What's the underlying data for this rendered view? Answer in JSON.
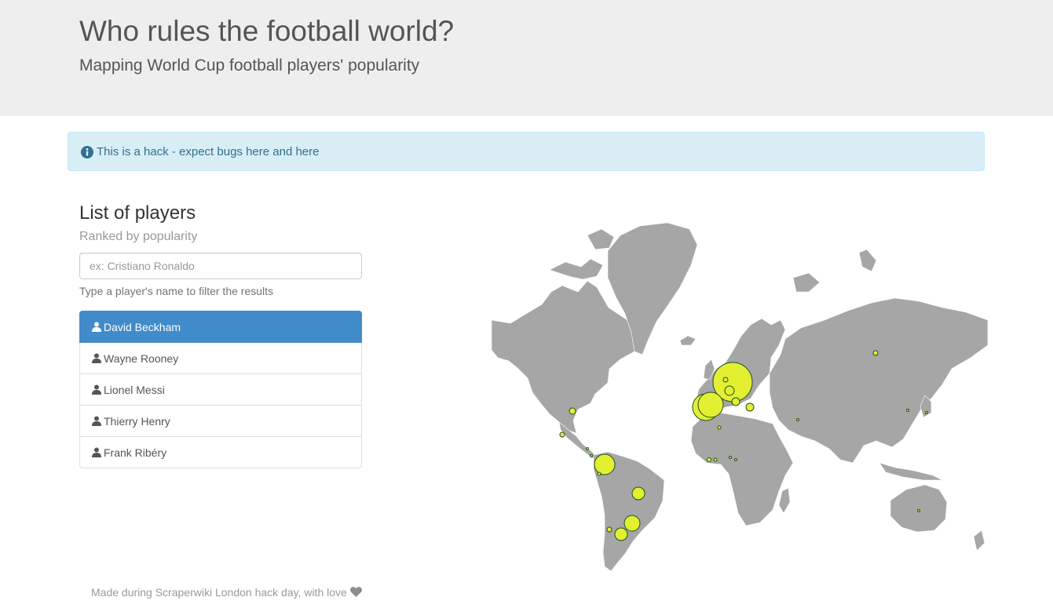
{
  "header": {
    "title": "Who rules the football world?",
    "subtitle": "Mapping World Cup football players' popularity"
  },
  "alert": {
    "icon": "info-circle-icon",
    "text": "This is a hack - expect bugs here and here"
  },
  "players_panel": {
    "title": "List of players",
    "subtitle": "Ranked by popularity",
    "search_placeholder": "ex: Cristiano Ronaldo",
    "search_value": "",
    "help_text": "Type a player's name to filter the results",
    "item_icon": "user-icon",
    "players": [
      {
        "name": "David Beckham",
        "active": true
      },
      {
        "name": "Wayne Rooney",
        "active": false
      },
      {
        "name": "Lionel Messi",
        "active": false
      },
      {
        "name": "Thierry Henry",
        "active": false
      },
      {
        "name": "Frank Ribéry",
        "active": false
      }
    ]
  },
  "map": {
    "land_color": "#a6a6a6",
    "border_color": "#ffffff",
    "bubble_color": "#e3f032",
    "bubble_stroke": "#1f4d1f"
  },
  "footer": {
    "text": "Made during Scraperwiki London hack day, with love",
    "icon": "heart-icon"
  }
}
